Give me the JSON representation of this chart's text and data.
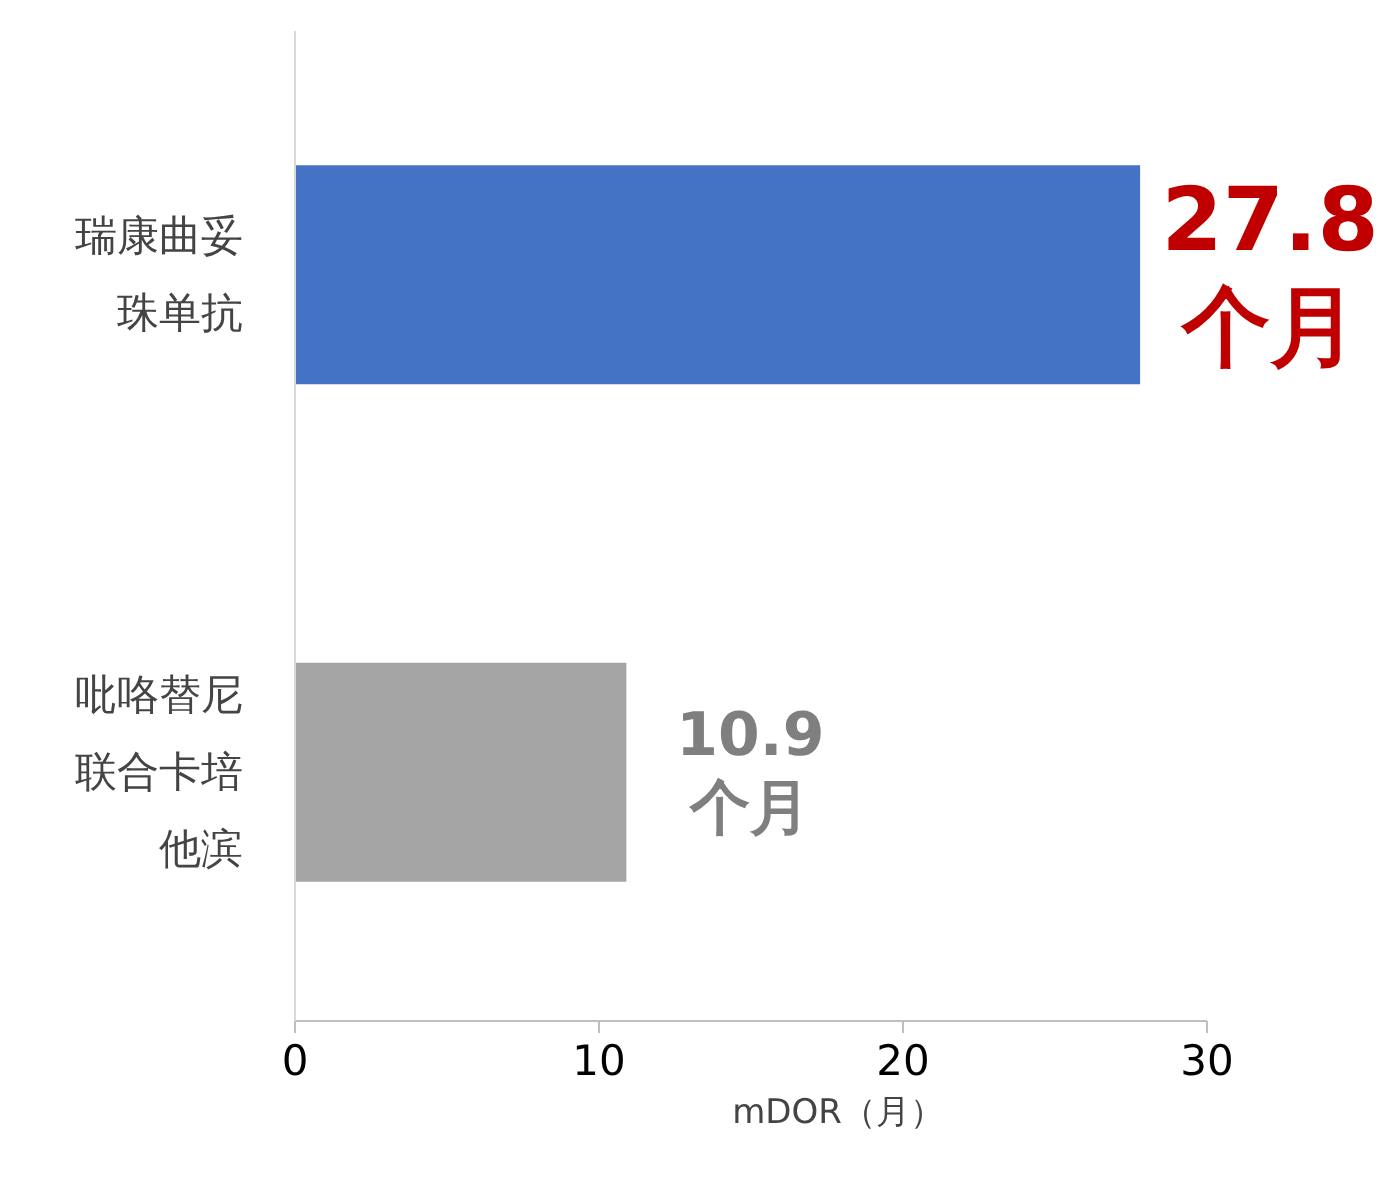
{
  "chart_data": {
    "type": "bar",
    "orientation": "horizontal",
    "categories": [
      "瑞康曲妥珠单抗",
      "吡咯替尼联合卡培他滨"
    ],
    "values": [
      27.8,
      10.9
    ],
    "colors": [
      "#4472c4",
      "#a5a5a5"
    ],
    "value_labels": [
      "27.8\n个月",
      "10.9\n个月"
    ],
    "xlabel": "mDOR（月）",
    "xlim": [
      0,
      30
    ],
    "xticks": [
      0,
      10,
      20,
      30
    ],
    "grid": false
  }
}
